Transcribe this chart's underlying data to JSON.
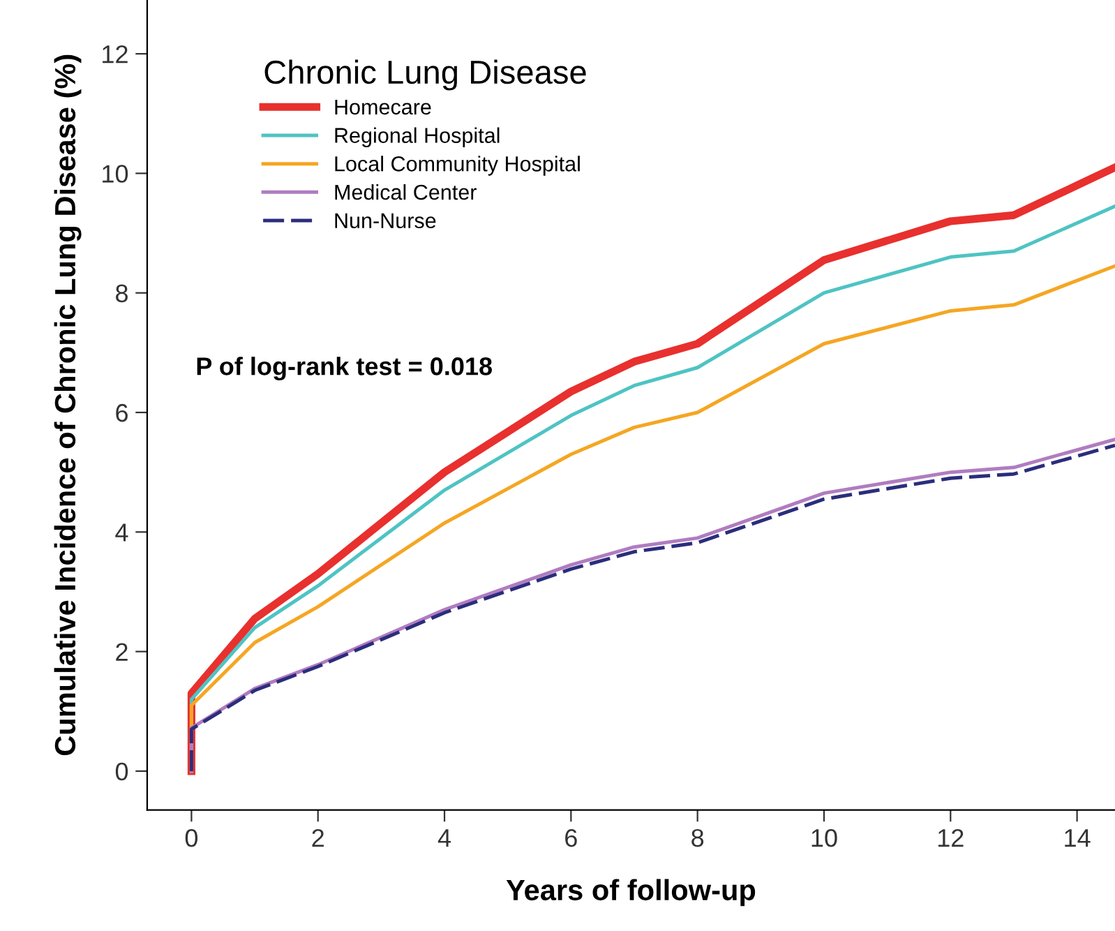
{
  "chart_data": {
    "type": "line",
    "xlabel": "Years of follow-up",
    "ylabel": "Cumulative Incidence of Chronic Lung Disease (%)",
    "legend_title": "Chronic Lung Disease",
    "legend": "top left",
    "x": [
      0,
      0,
      1,
      2,
      4,
      6,
      7,
      8,
      10,
      12,
      13,
      14.6
    ],
    "series": [
      {
        "name": "Homecare",
        "color": "#e8302e",
        "values": [
          0,
          1.3,
          2.55,
          3.3,
          5.0,
          6.35,
          6.85,
          7.15,
          8.55,
          9.2,
          9.3,
          10.1
        ]
      },
      {
        "name": "Regional Hospital",
        "color": "#4fc3c3",
        "values": [
          0,
          1.2,
          2.4,
          3.1,
          4.7,
          5.95,
          6.45,
          6.75,
          8.0,
          8.6,
          8.7,
          9.45
        ]
      },
      {
        "name": "Local Community Hospital",
        "color": "#f5a623",
        "values": [
          0,
          1.1,
          2.15,
          2.75,
          4.15,
          5.3,
          5.75,
          6.0,
          7.15,
          7.7,
          7.8,
          8.45
        ]
      },
      {
        "name": "Medical Center",
        "color": "#b07cc0",
        "values": [
          0,
          0.72,
          1.38,
          1.78,
          2.7,
          3.45,
          3.75,
          3.9,
          4.65,
          5.0,
          5.08,
          5.55
        ]
      },
      {
        "name": "Nun-Nurse",
        "color": "#2b2d7c",
        "line_style": "dashed",
        "values": [
          0,
          0.7,
          1.35,
          1.75,
          2.65,
          3.38,
          3.67,
          3.82,
          4.55,
          4.9,
          4.97,
          5.45
        ]
      }
    ],
    "xlim": [
      -0.7,
      14.6
    ],
    "ylim": [
      -0.65,
      12.9
    ],
    "xticks": [
      0,
      2,
      4,
      6,
      8,
      10,
      12,
      14
    ],
    "yticks": [
      0,
      2,
      4,
      6,
      8,
      10,
      12
    ],
    "grid": false,
    "annotations": [
      "P of log-rank test = 0.018"
    ]
  }
}
